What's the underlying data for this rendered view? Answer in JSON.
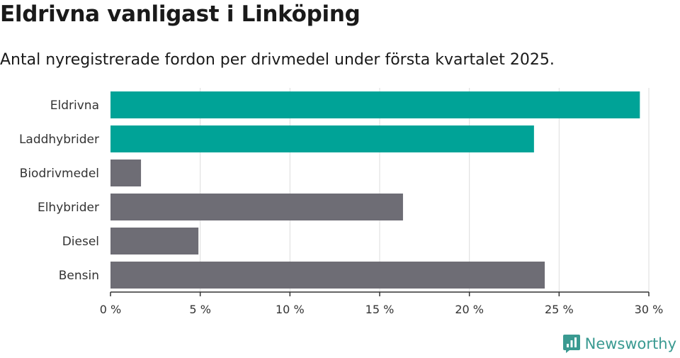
{
  "chart_data": {
    "type": "bar",
    "orientation": "horizontal",
    "title": "Eldrivna vanligast i Linköping",
    "subtitle": "Antal nyregistrerade fordon per drivmedel under första kvartalet 2025.",
    "categories": [
      "Eldrivna",
      "Laddhybrider",
      "Biodrivmedel",
      "Elhybrider",
      "Diesel",
      "Bensin"
    ],
    "values": [
      29.5,
      23.6,
      1.7,
      16.3,
      4.9,
      24.2
    ],
    "highlighted": [
      true,
      true,
      false,
      false,
      false,
      false
    ],
    "xlim": [
      0,
      30
    ],
    "xticks": [
      0,
      5,
      10,
      15,
      20,
      25,
      30
    ],
    "xtick_labels": [
      "0 %",
      "5 %",
      "10 %",
      "15 %",
      "20 %",
      "25 %",
      "30 %"
    ],
    "xlabel": "",
    "ylabel": "",
    "grid": "vertical",
    "colors": {
      "highlight": "#00a397",
      "default": "#6e6d75"
    }
  },
  "brand": {
    "name": "Newsworthy",
    "icon": "newsworthy-logo-icon",
    "color": "#3a9a91"
  }
}
